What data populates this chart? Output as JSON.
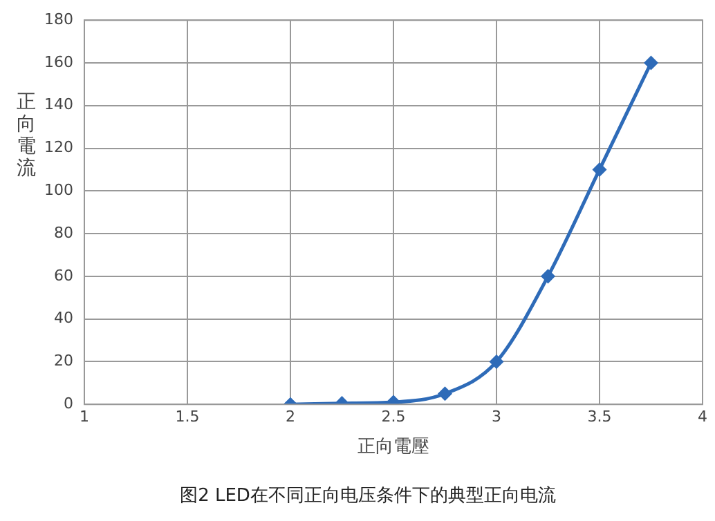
{
  "chart_data": {
    "type": "line",
    "title": "图2 LED在不同正向电压条件下的典型正向电流",
    "xlabel": "正向電壓",
    "ylabel": "正向電流",
    "x": [
      2,
      2.25,
      2.5,
      2.75,
      3,
      3.25,
      3.5,
      3.75
    ],
    "series": [
      {
        "color": "#2e6bb8",
        "values": [
          0,
          0.5,
          1,
          5,
          20,
          60,
          110,
          160
        ]
      }
    ],
    "xlim": [
      1,
      4
    ],
    "xticks": [
      1,
      1.5,
      2,
      2.5,
      3,
      3.5,
      4
    ],
    "ylim": [
      0,
      180
    ],
    "yticks": [
      0,
      20,
      40,
      60,
      80,
      100,
      120,
      140,
      160,
      180
    ],
    "grid": true,
    "legend": false,
    "marker": "diamond",
    "line_style": "solid"
  }
}
